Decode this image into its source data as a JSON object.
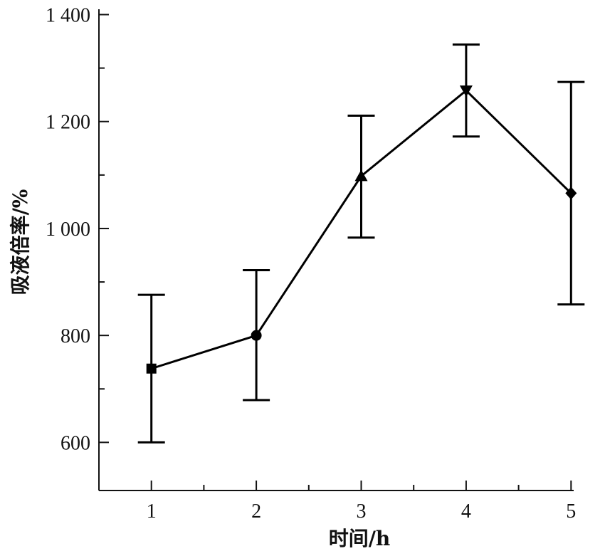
{
  "chart_data": {
    "type": "line",
    "x": [
      1,
      2,
      3,
      4,
      5
    ],
    "xlabel": "时间/h",
    "ylabel": "吸液倍率/%",
    "xlim": [
      0.5,
      5.5
    ],
    "ylim": [
      510,
      1410
    ],
    "x_ticks": [
      1,
      2,
      3,
      4,
      5
    ],
    "x_tick_labels": [
      "1",
      "2",
      "3",
      "4",
      "5"
    ],
    "y_ticks": [
      600,
      800,
      1000,
      1200,
      1400
    ],
    "y_tick_labels": [
      "600",
      "800",
      "1 000",
      "1 200",
      "1 400"
    ],
    "grid": false,
    "series": [
      {
        "values": [
          738,
          800,
          1098,
          1258,
          1066
        ],
        "error_low": [
          600,
          679,
          983,
          1172,
          858
        ],
        "error_high": [
          876,
          922,
          1211,
          1344,
          1274
        ],
        "markers": [
          "square",
          "circle",
          "triangle-up",
          "triangle-down",
          "diamond"
        ],
        "color": "#000000"
      }
    ]
  }
}
